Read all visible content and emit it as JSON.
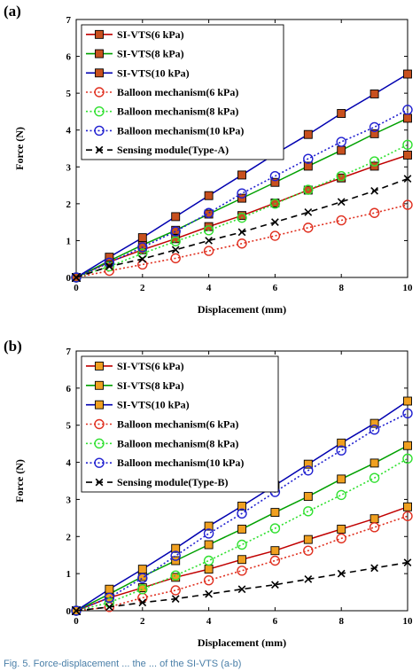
{
  "chart_data": [
    {
      "type": "line",
      "panel_label": "(a)",
      "xlabel": "Displacement (mm)",
      "ylabel": "Force (N)",
      "xlim": [
        0,
        10
      ],
      "ylim": [
        0,
        7
      ],
      "xticks": [
        "0",
        "2",
        "4",
        "6",
        "8",
        "10"
      ],
      "yticks": [
        "0",
        "1",
        "2",
        "3",
        "4",
        "5",
        "6",
        "7"
      ],
      "grid": false,
      "legend_position": "top-left",
      "x": [
        0,
        1,
        2,
        3,
        4,
        5,
        6,
        7,
        8,
        9,
        10
      ],
      "series": [
        {
          "name": "SI-VTS(6 kPa)",
          "color": "#c00000",
          "marker": "square",
          "marker_fill": "#c8501e",
          "style": "solid",
          "values": [
            0,
            0.42,
            0.75,
            1.05,
            1.38,
            1.68,
            2.02,
            2.37,
            2.7,
            3.02,
            3.32
          ]
        },
        {
          "name": "SI-VTS(8 kPa)",
          "color": "#00a000",
          "marker": "square",
          "marker_fill": "#c8501e",
          "style": "solid",
          "values": [
            0,
            0.45,
            0.88,
            1.28,
            1.72,
            2.15,
            2.58,
            3.02,
            3.45,
            3.9,
            4.32
          ]
        },
        {
          "name": "SI-VTS(10 kPa)",
          "color": "#0000b0",
          "marker": "square",
          "marker_fill": "#c8501e",
          "style": "solid",
          "values": [
            0,
            0.55,
            1.08,
            1.65,
            2.22,
            2.78,
            3.35,
            3.88,
            4.45,
            4.98,
            5.52
          ]
        },
        {
          "name": "Balloon mechanism(6 kPa)",
          "color": "#e03020",
          "marker": "circle",
          "marker_fill": "none",
          "style": "dotted",
          "values": [
            0,
            0.18,
            0.35,
            0.52,
            0.72,
            0.92,
            1.13,
            1.35,
            1.55,
            1.75,
            1.97
          ]
        },
        {
          "name": "Balloon mechanism(8 kPa)",
          "color": "#30e030",
          "marker": "circle",
          "marker_fill": "none",
          "style": "dotted",
          "values": [
            0,
            0.3,
            0.65,
            0.98,
            1.28,
            1.62,
            2.0,
            2.38,
            2.75,
            3.15,
            3.6
          ]
        },
        {
          "name": "Balloon mechanism(10 kPa)",
          "color": "#2020d0",
          "marker": "circle",
          "marker_fill": "none",
          "style": "dotted",
          "values": [
            0,
            0.4,
            0.82,
            1.25,
            1.75,
            2.28,
            2.75,
            3.22,
            3.68,
            4.08,
            4.55
          ]
        },
        {
          "name": "Sensing module(Type-A)",
          "color": "#000000",
          "marker": "cross",
          "marker_fill": "none",
          "style": "dashed",
          "values": [
            0,
            0.3,
            0.5,
            0.75,
            1.0,
            1.23,
            1.5,
            1.77,
            2.05,
            2.35,
            2.68
          ]
        }
      ]
    },
    {
      "type": "line",
      "panel_label": "(b)",
      "xlabel": "Displacement (mm)",
      "ylabel": "Force (N)",
      "xlim": [
        0,
        10
      ],
      "ylim": [
        0,
        7
      ],
      "xticks": [
        "0",
        "2",
        "4",
        "6",
        "8",
        "10"
      ],
      "yticks": [
        "0",
        "1",
        "2",
        "3",
        "4",
        "5",
        "6",
        "7"
      ],
      "grid": false,
      "legend_position": "top-left",
      "x": [
        0,
        1,
        2,
        3,
        4,
        5,
        6,
        7,
        8,
        9,
        10
      ],
      "series": [
        {
          "name": "SI-VTS(6 kPa)",
          "color": "#c00000",
          "marker": "square",
          "marker_fill": "#f0a020",
          "style": "solid",
          "values": [
            0,
            0.35,
            0.62,
            0.9,
            1.12,
            1.38,
            1.62,
            1.92,
            2.2,
            2.48,
            2.8
          ]
        },
        {
          "name": "SI-VTS(8 kPa)",
          "color": "#00a000",
          "marker": "square",
          "marker_fill": "#f0a020",
          "style": "solid",
          "values": [
            0,
            0.45,
            0.92,
            1.35,
            1.78,
            2.2,
            2.65,
            3.08,
            3.55,
            3.98,
            4.45
          ]
        },
        {
          "name": "SI-VTS(10 kPa)",
          "color": "#0000b0",
          "marker": "square",
          "marker_fill": "#f0a020",
          "style": "solid",
          "values": [
            0,
            0.58,
            1.12,
            1.68,
            2.28,
            2.82,
            3.38,
            3.95,
            4.52,
            5.05,
            5.65
          ]
        },
        {
          "name": "Balloon mechanism(6 kPa)",
          "color": "#e03020",
          "marker": "circle",
          "marker_fill": "none",
          "style": "dotted",
          "values": [
            0,
            0.1,
            0.35,
            0.55,
            0.82,
            1.08,
            1.35,
            1.62,
            1.95,
            2.25,
            2.55
          ]
        },
        {
          "name": "Balloon mechanism(8 kPa)",
          "color": "#30e030",
          "marker": "circle",
          "marker_fill": "none",
          "style": "dotted",
          "values": [
            0,
            0.22,
            0.58,
            0.95,
            1.35,
            1.78,
            2.22,
            2.68,
            3.12,
            3.58,
            4.1
          ]
        },
        {
          "name": "Balloon mechanism(10 kPa)",
          "color": "#2020d0",
          "marker": "circle",
          "marker_fill": "none",
          "style": "dotted",
          "values": [
            0,
            0.35,
            0.88,
            1.48,
            2.08,
            2.62,
            3.2,
            3.78,
            4.32,
            4.88,
            5.32
          ]
        },
        {
          "name": "Sensing module(Type-B)",
          "color": "#000000",
          "marker": "cross",
          "marker_fill": "none",
          "style": "dashed",
          "values": [
            0,
            0.1,
            0.22,
            0.32,
            0.45,
            0.58,
            0.7,
            0.85,
            1.0,
            1.15,
            1.3
          ]
        }
      ]
    }
  ],
  "caption_fragment": "Fig. 5.  Force-displacement ... the ... of the SI-VTS (a-b)"
}
